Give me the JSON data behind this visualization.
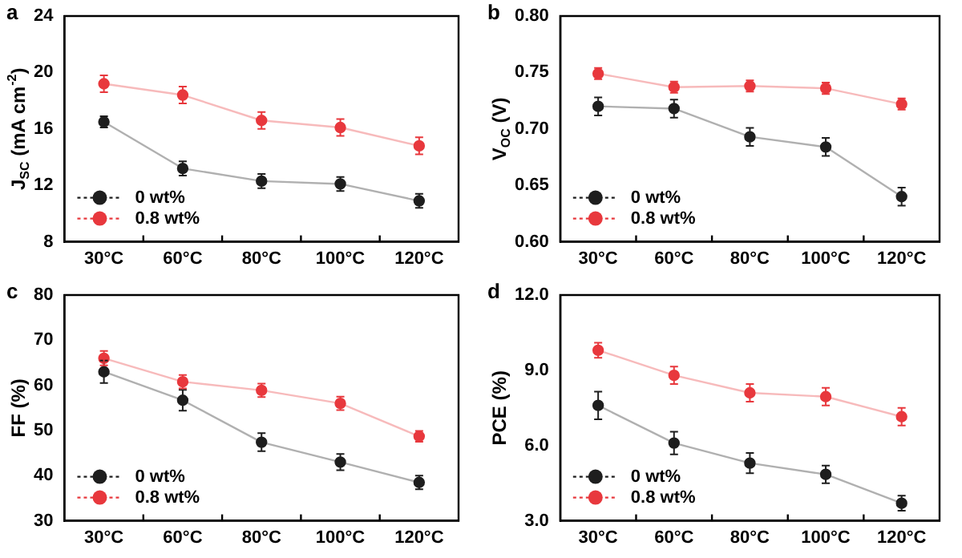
{
  "chart_data": [
    {
      "type": "line",
      "title": "a",
      "ylabel": "J$_{SC}$ (mA cm$^{-2}$)",
      "categories": [
        "30°C",
        "60°C",
        "80°C",
        "100°C",
        "120°C"
      ],
      "ylim": [
        8,
        24
      ],
      "yticks": [
        8,
        12,
        16,
        20,
        24
      ],
      "legend": "bottom left",
      "marker": "circle",
      "line_style": "solid",
      "grid": false,
      "series": [
        {
          "name": "0 wt%",
          "color": "#1e1e1e",
          "values": [
            16.5,
            13.2,
            12.3,
            12.1,
            10.9
          ],
          "errors": [
            0.4,
            0.5,
            0.5,
            0.5,
            0.5
          ]
        },
        {
          "name": "0.8 wt%",
          "color": "#e8383d",
          "values": [
            19.2,
            18.4,
            16.6,
            16.1,
            14.8
          ],
          "errors": [
            0.6,
            0.6,
            0.6,
            0.6,
            0.6
          ]
        }
      ]
    },
    {
      "type": "line",
      "title": "b",
      "ylabel": "V$_{OC}$ (V)",
      "categories": [
        "30°C",
        "60°C",
        "80°C",
        "100°C",
        "120°C"
      ],
      "ylim": [
        0.6,
        0.8
      ],
      "yticks": [
        {
          "value": 0.6,
          "label": "0.60"
        },
        {
          "value": 0.65,
          "label": "0.65"
        },
        {
          "value": 0.7,
          "label": "0.70"
        },
        {
          "value": 0.75,
          "label": "0.75"
        },
        {
          "value": 0.8,
          "label": "0.80"
        }
      ],
      "legend": "bottom left",
      "marker": "circle",
      "line_style": "solid",
      "grid": false,
      "series": [
        {
          "name": "0 wt%",
          "color": "#1e1e1e",
          "values": [
            0.72,
            0.718,
            0.693,
            0.684,
            0.64
          ],
          "errors": [
            0.008,
            0.008,
            0.008,
            0.008,
            0.008
          ]
        },
        {
          "name": "0.8 wt%",
          "color": "#e8383d",
          "values": [
            0.749,
            0.737,
            0.738,
            0.736,
            0.722
          ],
          "errors": [
            0.005,
            0.005,
            0.005,
            0.005,
            0.005
          ]
        }
      ]
    },
    {
      "type": "line",
      "title": "c",
      "ylabel": "FF (%)",
      "categories": [
        "30°C",
        "60°C",
        "80°C",
        "100°C",
        "120°C"
      ],
      "ylim": [
        30,
        80
      ],
      "yticks": [
        30,
        40,
        50,
        60,
        70,
        80
      ],
      "legend": "bottom left",
      "marker": "circle",
      "line_style": "solid",
      "grid": false,
      "series": [
        {
          "name": "0 wt%",
          "color": "#1e1e1e",
          "values": [
            63,
            56.7,
            47.4,
            43,
            38.5
          ],
          "errors": [
            2.5,
            2.3,
            2,
            1.8,
            1.5
          ]
        },
        {
          "name": "0.8 wt%",
          "color": "#e8383d",
          "values": [
            66,
            60.8,
            58.9,
            56,
            48.7
          ],
          "errors": [
            1.6,
            1.5,
            1.5,
            1.5,
            1.2
          ]
        }
      ]
    },
    {
      "type": "line",
      "title": "d",
      "ylabel": "PCE (%)",
      "categories": [
        "30°C",
        "60°C",
        "80°C",
        "100°C",
        "120°C"
      ],
      "ylim": [
        3,
        12
      ],
      "yticks": [
        {
          "value": 3,
          "label": "3.0"
        },
        {
          "value": 6,
          "label": "6.0"
        },
        {
          "value": 9,
          "label": "9.0"
        },
        {
          "value": 12,
          "label": "12.0"
        }
      ],
      "legend": "bottom left",
      "marker": "circle",
      "line_style": "solid",
      "grid": false,
      "series": [
        {
          "name": "0 wt%",
          "color": "#1e1e1e",
          "values": [
            7.6,
            6.1,
            5.3,
            4.85,
            3.7
          ],
          "errors": [
            0.55,
            0.45,
            0.4,
            0.35,
            0.3
          ]
        },
        {
          "name": "0.8 wt%",
          "color": "#e8383d",
          "values": [
            9.8,
            8.8,
            8.1,
            7.95,
            7.15
          ],
          "errors": [
            0.3,
            0.35,
            0.35,
            0.35,
            0.35
          ]
        }
      ]
    }
  ]
}
